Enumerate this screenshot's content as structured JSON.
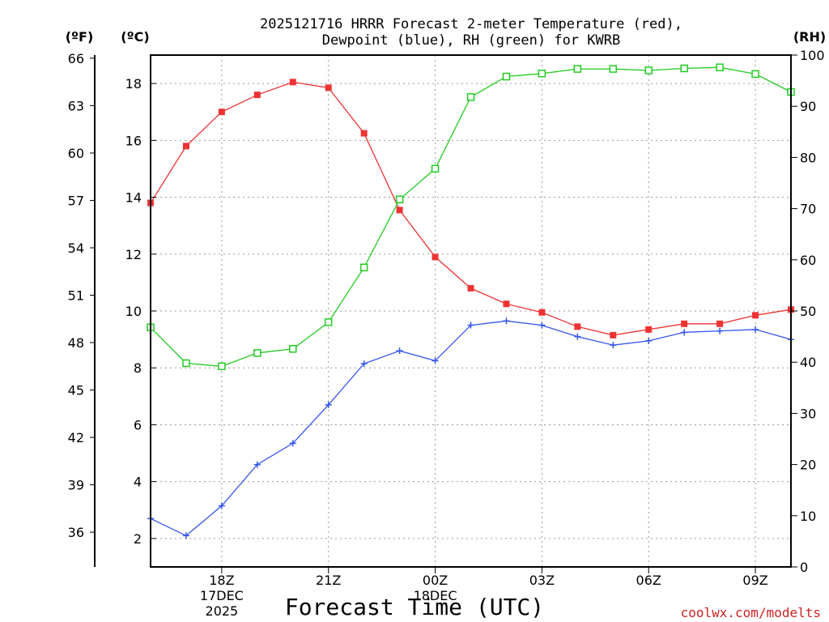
{
  "chart_data": {
    "type": "line",
    "title_line1": "2025121716 HRRR Forecast 2-meter Temperature (red),",
    "title_line2": "Dewpoint (blue), RH (green) for KWRB",
    "xlabel": "Forecast Time (UTC)",
    "credit": "coolwx.com/modelts",
    "colors": {
      "temperature": "#ee3333",
      "dewpoint": "#3355ee",
      "rh": "#22cc22",
      "credit": "#cc2222",
      "grid": "#9a9a9a"
    },
    "y_left_f": {
      "unit_label": "(ºF)",
      "ticks": [
        36,
        39,
        42,
        45,
        48,
        51,
        54,
        57,
        60,
        63,
        66
      ],
      "tick_labels": [
        "36",
        "39",
        "42",
        "45",
        "48",
        "51",
        "54",
        "57",
        "60",
        "63",
        "66"
      ]
    },
    "y_left_c": {
      "unit_label": "(ºC)",
      "range": [
        1,
        19
      ],
      "ticks": [
        2,
        4,
        6,
        8,
        10,
        12,
        14,
        16,
        18
      ],
      "tick_labels": [
        "2",
        "4",
        "6",
        "8",
        "10",
        "12",
        "14",
        "16",
        "18"
      ]
    },
    "y_right_rh": {
      "unit_label": "(RH)",
      "range": [
        0,
        100
      ],
      "ticks": [
        0,
        10,
        20,
        30,
        40,
        50,
        60,
        70,
        80,
        90,
        100
      ],
      "tick_labels": [
        "0",
        "10",
        "20",
        "30",
        "40",
        "50",
        "60",
        "70",
        "80",
        "90",
        "100"
      ]
    },
    "x_axis": {
      "range_hours": [
        0,
        18
      ],
      "ticks": [
        {
          "hour": 2,
          "label": "18Z"
        },
        {
          "hour": 5,
          "label": "21Z"
        },
        {
          "hour": 8,
          "label": "00Z"
        },
        {
          "hour": 11,
          "label": "03Z"
        },
        {
          "hour": 14,
          "label": "06Z"
        },
        {
          "hour": 17,
          "label": "09Z"
        }
      ],
      "date_labels": [
        {
          "hour": 2,
          "lines": [
            "17DEC",
            "2025"
          ]
        },
        {
          "hour": 8,
          "lines": [
            "18DEC"
          ]
        }
      ]
    },
    "series": [
      {
        "name": "2-meter Temperature",
        "unit": "C",
        "axis": "c",
        "marker": "filled-square",
        "x": [
          0,
          1,
          2,
          3,
          4,
          5,
          6,
          7,
          8,
          9,
          10,
          11,
          12,
          13,
          14,
          15,
          16,
          17,
          18
        ],
        "values": [
          13.8,
          15.8,
          17.0,
          17.6,
          18.05,
          17.85,
          16.25,
          13.55,
          11.9,
          10.8,
          10.25,
          9.95,
          9.45,
          9.15,
          9.35,
          9.55,
          9.55,
          9.85,
          10.05
        ]
      },
      {
        "name": "Dewpoint",
        "unit": "C",
        "axis": "c",
        "marker": "plus",
        "x": [
          0,
          1,
          2,
          3,
          4,
          5,
          6,
          7,
          8,
          9,
          10,
          11,
          12,
          13,
          14,
          15,
          16,
          17,
          18
        ],
        "values": [
          2.7,
          2.1,
          3.15,
          4.6,
          5.35,
          6.7,
          8.15,
          8.6,
          8.25,
          9.5,
          9.65,
          9.5,
          9.1,
          8.8,
          8.95,
          9.25,
          9.3,
          9.35,
          9.0
        ]
      },
      {
        "name": "RH",
        "unit": "%",
        "axis": "rh",
        "marker": "open-square",
        "x": [
          0,
          1,
          2,
          3,
          4,
          5,
          6,
          7,
          8,
          9,
          10,
          11,
          12,
          13,
          14,
          15,
          16,
          17,
          18
        ],
        "values": [
          46.8,
          39.8,
          39.2,
          41.8,
          42.6,
          47.8,
          58.5,
          71.8,
          77.8,
          91.8,
          95.8,
          96.4,
          97.3,
          97.3,
          97.0,
          97.4,
          97.6,
          96.3,
          92.8
        ]
      }
    ]
  }
}
